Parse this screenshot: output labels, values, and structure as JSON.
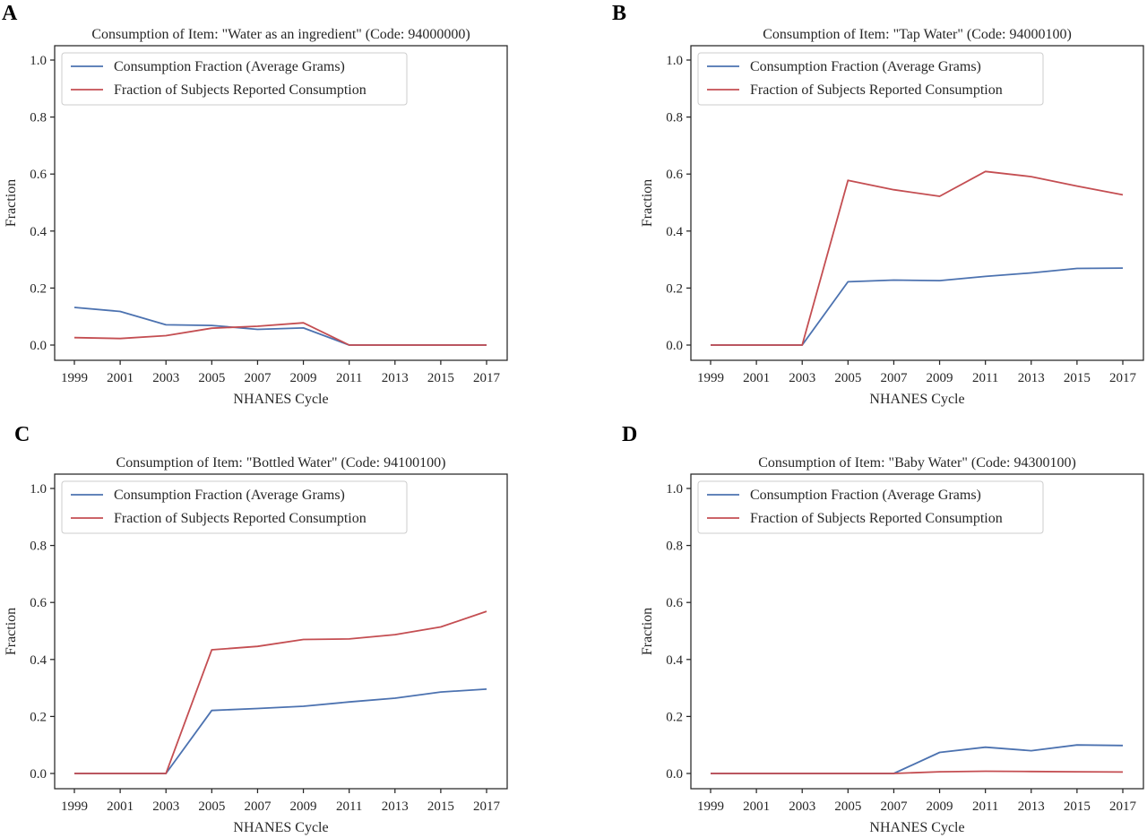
{
  "chart_data": [
    {
      "panel": "A",
      "type": "line",
      "title": "Consumption of Item: \"Water as an ingredient\" (Code: 94000000)",
      "xlabel": "NHANES Cycle",
      "ylabel": "Fraction",
      "categories": [
        "1999",
        "2001",
        "2003",
        "2005",
        "2007",
        "2009",
        "2011",
        "2013",
        "2015",
        "2017"
      ],
      "ylim": [
        0,
        1.0
      ],
      "yticks": [
        "0.0",
        "0.2",
        "0.4",
        "0.6",
        "0.8",
        "1.0"
      ],
      "legend_position": "top-left",
      "series": [
        {
          "name": "Consumption Fraction (Average Grams)",
          "color": "#4c72b0",
          "values": [
            0.132,
            0.118,
            0.071,
            0.069,
            0.055,
            0.06,
            0.0,
            0.0,
            0.0,
            0.0
          ]
        },
        {
          "name": "Fraction of Subjects Reported Consumption",
          "color": "#c44e52",
          "values": [
            0.026,
            0.023,
            0.033,
            0.059,
            0.066,
            0.078,
            0.0,
            0.0,
            0.0,
            0.0
          ]
        }
      ]
    },
    {
      "panel": "B",
      "type": "line",
      "title": "Consumption of Item: \"Tap Water\" (Code: 94000100)",
      "xlabel": "NHANES Cycle",
      "ylabel": "Fraction",
      "categories": [
        "1999",
        "2001",
        "2003",
        "2005",
        "2007",
        "2009",
        "2011",
        "2013",
        "2015",
        "2017"
      ],
      "ylim": [
        0,
        1.0
      ],
      "yticks": [
        "0.0",
        "0.2",
        "0.4",
        "0.6",
        "0.8",
        "1.0"
      ],
      "legend_position": "top-left",
      "series": [
        {
          "name": "Consumption Fraction (Average Grams)",
          "color": "#4c72b0",
          "values": [
            0.0,
            0.0,
            0.0,
            0.222,
            0.228,
            0.226,
            0.241,
            0.253,
            0.269,
            0.27
          ]
        },
        {
          "name": "Fraction of Subjects Reported Consumption",
          "color": "#c44e52",
          "values": [
            0.0,
            0.0,
            0.0,
            0.578,
            0.545,
            0.522,
            0.609,
            0.591,
            0.558,
            0.527
          ]
        }
      ]
    },
    {
      "panel": "C",
      "type": "line",
      "title": "Consumption of Item: \"Bottled Water\" (Code: 94100100)",
      "xlabel": "NHANES Cycle",
      "ylabel": "Fraction",
      "categories": [
        "1999",
        "2001",
        "2003",
        "2005",
        "2007",
        "2009",
        "2011",
        "2013",
        "2015",
        "2017"
      ],
      "ylim": [
        0,
        1.0
      ],
      "yticks": [
        "0.0",
        "0.2",
        "0.4",
        "0.6",
        "0.8",
        "1.0"
      ],
      "legend_position": "top-left",
      "series": [
        {
          "name": "Consumption Fraction (Average Grams)",
          "color": "#4c72b0",
          "values": [
            0.0,
            0.0,
            0.0,
            0.221,
            0.228,
            0.236,
            0.251,
            0.264,
            0.286,
            0.296
          ]
        },
        {
          "name": "Fraction of Subjects Reported Consumption",
          "color": "#c44e52",
          "values": [
            0.0,
            0.0,
            0.0,
            0.434,
            0.446,
            0.47,
            0.472,
            0.487,
            0.514,
            0.569
          ]
        }
      ]
    },
    {
      "panel": "D",
      "type": "line",
      "title": "Consumption of Item: \"Baby Water\" (Code: 94300100)",
      "xlabel": "NHANES Cycle",
      "ylabel": "Fraction",
      "categories": [
        "1999",
        "2001",
        "2003",
        "2005",
        "2007",
        "2009",
        "2011",
        "2013",
        "2015",
        "2017"
      ],
      "ylim": [
        0,
        1.0
      ],
      "yticks": [
        "0.0",
        "0.2",
        "0.4",
        "0.6",
        "0.8",
        "1.0"
      ],
      "legend_position": "top-left",
      "series": [
        {
          "name": "Consumption Fraction (Average Grams)",
          "color": "#4c72b0",
          "values": [
            0.0,
            0.0,
            0.0,
            0.0,
            0.0,
            0.074,
            0.092,
            0.08,
            0.1,
            0.098
          ]
        },
        {
          "name": "Fraction of Subjects Reported Consumption",
          "color": "#c44e52",
          "values": [
            0.0,
            0.0,
            0.0,
            0.0,
            0.0,
            0.006,
            0.008,
            0.007,
            0.006,
            0.005
          ]
        }
      ]
    }
  ]
}
